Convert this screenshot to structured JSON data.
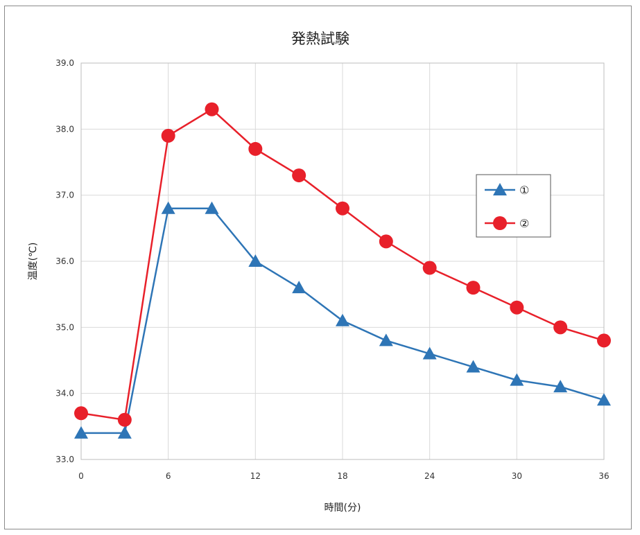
{
  "chart_data": {
    "type": "line",
    "title": "発熱試験",
    "xlabel": "時間(分)",
    "ylabel": "温度(℃)",
    "xlim": [
      0,
      36
    ],
    "ylim": [
      33.0,
      39.0
    ],
    "x_ticks": [
      0,
      6,
      12,
      18,
      24,
      30,
      36
    ],
    "y_ticks": [
      "33.0",
      "34.0",
      "35.0",
      "36.0",
      "37.0",
      "38.0",
      "39.0"
    ],
    "x": [
      0,
      3,
      6,
      9,
      12,
      15,
      18,
      21,
      24,
      27,
      30,
      33,
      36
    ],
    "series": [
      {
        "name": "①",
        "marker": "triangle",
        "color": "#2e75b6",
        "values": [
          33.4,
          33.4,
          36.8,
          36.8,
          36.0,
          35.6,
          35.1,
          34.8,
          34.6,
          34.4,
          34.2,
          34.1,
          33.9
        ]
      },
      {
        "name": "②",
        "marker": "circle",
        "color": "#e8202a",
        "values": [
          33.7,
          33.6,
          37.9,
          38.3,
          37.7,
          37.3,
          36.8,
          36.3,
          35.9,
          35.6,
          35.3,
          35.0,
          34.8
        ]
      }
    ],
    "grid": true,
    "legend_position": "right"
  }
}
